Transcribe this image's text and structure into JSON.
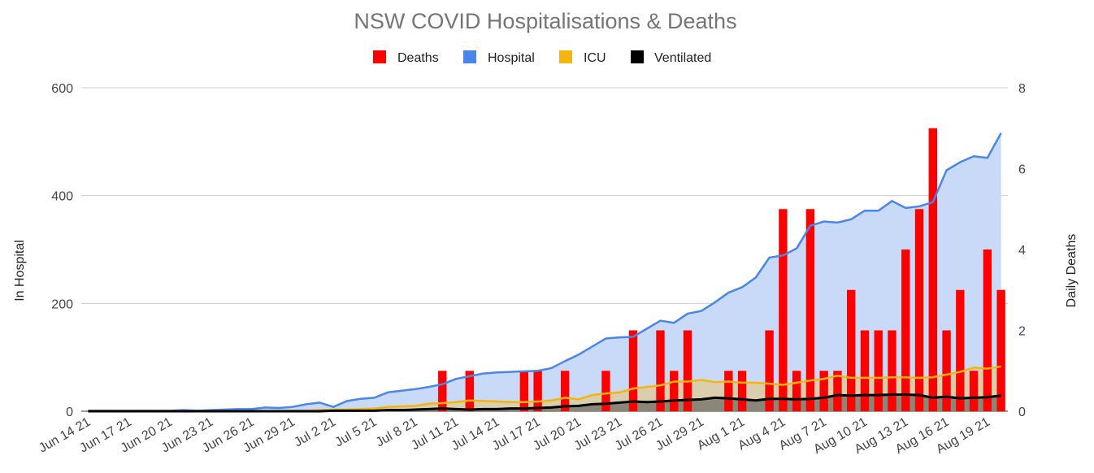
{
  "chart_data": {
    "type": "combo",
    "title": "NSW COVID Hospitalisations & Deaths",
    "ylabel_left": "In Hospital",
    "ylabel_right": "Daily Deaths",
    "ylim_left": [
      0,
      600
    ],
    "ylim_right": [
      0,
      8
    ],
    "yticks_left": [
      "0",
      "200",
      "400",
      "600"
    ],
    "yticks_right": [
      "0",
      "2",
      "4",
      "6",
      "8"
    ],
    "grid": true,
    "legend_position": "top",
    "legend": [
      {
        "name": "Deaths",
        "color": "#ff0000"
      },
      {
        "name": "Hospital",
        "color": "#4a86e8"
      },
      {
        "name": "ICU",
        "color": "#f6b40e"
      },
      {
        "name": "Ventilated",
        "color": "#000000"
      }
    ],
    "x_start": "Jun 14 21",
    "x_end": "Aug 21 21",
    "x_tick_labels": [
      "Jun 14 21",
      "Jun 17 21",
      "Jun 20 21",
      "Jun 23 21",
      "Jun 26 21",
      "Jun 29 21",
      "Jul 2 21",
      "Jul 5 21",
      "Jul 8 21",
      "Jul 11 21",
      "Jul 14 21",
      "Jul 17 21",
      "Jul 20 21",
      "Jul 23 21",
      "Jul 26 21",
      "Jul 29 21",
      "Aug 1 21",
      "Aug 4 21",
      "Aug 7 21",
      "Aug 10 21",
      "Aug 13 21",
      "Aug 16 21",
      "Aug 19 21"
    ],
    "series": [
      {
        "name": "Hospital",
        "type": "area",
        "axis": "left",
        "color": "#4a86e8",
        "values": [
          1,
          1,
          1,
          1,
          1,
          1,
          1,
          2,
          1,
          2,
          3,
          4,
          4,
          7,
          6,
          8,
          13,
          16,
          8,
          19,
          23,
          25,
          35,
          38,
          41,
          45,
          50,
          60,
          65,
          70,
          72,
          73,
          74,
          75,
          80,
          93,
          105,
          120,
          135,
          137,
          138,
          153,
          168,
          164,
          181,
          186,
          202,
          220,
          230,
          248,
          285,
          289,
          302,
          344,
          352,
          350,
          356,
          372,
          372,
          390,
          377,
          380,
          388,
          447,
          462,
          473,
          470,
          516
        ]
      },
      {
        "name": "ICU",
        "type": "area",
        "axis": "left",
        "color": "#f6b40e",
        "values": [
          0,
          0,
          0,
          0,
          0,
          0,
          0,
          0,
          0,
          0,
          0,
          0,
          0,
          0,
          0,
          1,
          1,
          2,
          3,
          3,
          4,
          5,
          8,
          9,
          10,
          14,
          15,
          17,
          20,
          19,
          18,
          17,
          17,
          18,
          20,
          25,
          22,
          30,
          33,
          35,
          42,
          45,
          48,
          55,
          55,
          58,
          54,
          55,
          53,
          53,
          51,
          49,
          53,
          57,
          60,
          66,
          62,
          62,
          62,
          63,
          63,
          62,
          63,
          68,
          73,
          81,
          79,
          83
        ]
      },
      {
        "name": "Ventilated",
        "type": "area",
        "axis": "left",
        "color": "#000000",
        "values": [
          0,
          0,
          0,
          0,
          0,
          0,
          0,
          0,
          0,
          0,
          0,
          0,
          0,
          0,
          0,
          0,
          0,
          0,
          1,
          1,
          1,
          1,
          2,
          2,
          3,
          4,
          5,
          4,
          3,
          4,
          4,
          5,
          5,
          6,
          7,
          9,
          10,
          13,
          14,
          16,
          18,
          17,
          18,
          20,
          21,
          22,
          25,
          24,
          22,
          20,
          23,
          23,
          22,
          23,
          25,
          30,
          29,
          30,
          30,
          31,
          31,
          30,
          25,
          27,
          24,
          25,
          26,
          29
        ]
      },
      {
        "name": "Deaths",
        "type": "bar",
        "axis": "right",
        "color": "#ff0000",
        "values": [
          0,
          0,
          0,
          0,
          0,
          0,
          0,
          0,
          0,
          0,
          0,
          0,
          0,
          0,
          0,
          0,
          0,
          0,
          0,
          0,
          0,
          0,
          0,
          0,
          0,
          0,
          1,
          0,
          1,
          0,
          0,
          0,
          1,
          1,
          0,
          1,
          0,
          0,
          1,
          0,
          2,
          0,
          2,
          1,
          2,
          0,
          0,
          1,
          1,
          0,
          2,
          5,
          1,
          5,
          1,
          1,
          3,
          2,
          2,
          2,
          4,
          5,
          7,
          2,
          3,
          1,
          4,
          3
        ]
      }
    ]
  }
}
